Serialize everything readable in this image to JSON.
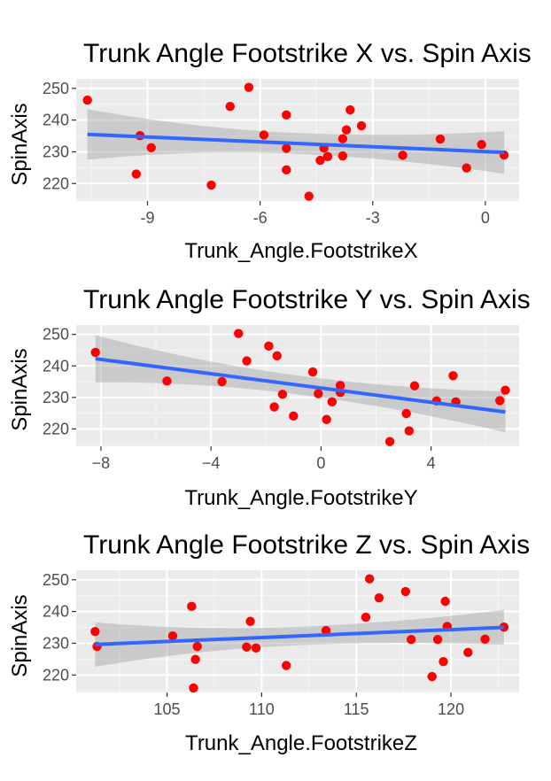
{
  "chart_data": [
    {
      "type": "scatter",
      "title": "Trunk Angle Footstrike X vs. Spin Axis",
      "xlabel": "Trunk_Angle.FootstrikeX",
      "ylabel": "SpinAxis",
      "xlim": [
        -10.9,
        0.9
      ],
      "ylim": [
        214.5,
        253
      ],
      "xticks": [
        -9,
        -6,
        -3,
        0
      ],
      "xtick_labels": [
        "-9",
        "-6",
        "-3",
        "0"
      ],
      "yticks": [
        220,
        230,
        240,
        250
      ],
      "ytick_labels": [
        "220",
        "230",
        "240",
        "250"
      ],
      "grid": true,
      "points_color": "#ff0000",
      "fit_color": "#3366ff",
      "band_color": "#999999",
      "fit": {
        "x": [
          -10.6,
          0.5
        ],
        "y": [
          235.5,
          229.8
        ]
      },
      "band_half_width": {
        "left": 8,
        "center": 3.3,
        "right": 6.7
      },
      "points": [
        [
          -10.6,
          246.3
        ],
        [
          -9.3,
          223.0
        ],
        [
          -9.2,
          235.1
        ],
        [
          -8.9,
          231.3
        ],
        [
          -7.3,
          219.5
        ],
        [
          -6.8,
          244.3
        ],
        [
          -6.3,
          250.3
        ],
        [
          -5.9,
          235.3
        ],
        [
          -5.3,
          241.6
        ],
        [
          -5.3,
          231.1
        ],
        [
          -5.3,
          224.3
        ],
        [
          -4.7,
          216.0
        ],
        [
          -4.4,
          227.3
        ],
        [
          -4.3,
          231.2
        ],
        [
          -4.2,
          228.5
        ],
        [
          -3.8,
          228.7
        ],
        [
          -3.8,
          234.1
        ],
        [
          -3.7,
          236.9
        ],
        [
          -3.6,
          243.2
        ],
        [
          -3.3,
          238.2
        ],
        [
          -2.2,
          228.9
        ],
        [
          -1.2,
          234.0
        ],
        [
          -0.5,
          224.9
        ],
        [
          -0.1,
          232.3
        ],
        [
          0.5,
          229.0
        ]
      ]
    },
    {
      "type": "scatter",
      "title": "Trunk Angle Footstrike Y vs. Spin Axis",
      "xlabel": "Trunk_Angle.FootstrikeY",
      "ylabel": "SpinAxis",
      "xlim": [
        -8.9,
        7.2
      ],
      "ylim": [
        214.5,
        253
      ],
      "xticks": [
        -8,
        -4,
        0,
        4
      ],
      "xtick_labels": [
        "−8",
        "−4",
        "0",
        "4"
      ],
      "yticks": [
        220,
        230,
        240,
        250
      ],
      "ytick_labels": [
        "220",
        "230",
        "240",
        "250"
      ],
      "grid": true,
      "points_color": "#ff0000",
      "fit_color": "#3366ff",
      "band_color": "#999999",
      "fit": {
        "x": [
          -8.2,
          6.7
        ],
        "y": [
          242.3,
          225.4
        ]
      },
      "band_half_width": {
        "left": 7.5,
        "center": 3.0,
        "right": 6.5
      },
      "points": [
        [
          -8.2,
          244.3
        ],
        [
          -5.6,
          235.2
        ],
        [
          -3.6,
          235.0
        ],
        [
          -3.0,
          250.3
        ],
        [
          -2.7,
          241.6
        ],
        [
          -1.9,
          246.3
        ],
        [
          -1.7,
          227.0
        ],
        [
          -1.6,
          243.2
        ],
        [
          -1.4,
          231.0
        ],
        [
          -1.0,
          224.1
        ],
        [
          -0.3,
          238.1
        ],
        [
          -0.1,
          231.2
        ],
        [
          0.2,
          223.0
        ],
        [
          0.4,
          228.6
        ],
        [
          0.7,
          233.8
        ],
        [
          0.7,
          231.6
        ],
        [
          2.5,
          216.0
        ],
        [
          3.1,
          224.9
        ],
        [
          3.2,
          219.4
        ],
        [
          3.4,
          233.7
        ],
        [
          4.2,
          228.9
        ],
        [
          4.8,
          236.9
        ],
        [
          4.9,
          228.6
        ],
        [
          6.5,
          229.0
        ],
        [
          6.7,
          232.3
        ]
      ]
    },
    {
      "type": "scatter",
      "title": "Trunk Angle Footstrike Z vs. Spin Axis",
      "xlabel": "Trunk_Angle.FootstrikeZ",
      "ylabel": "SpinAxis",
      "xlim": [
        100.2,
        123.6
      ],
      "ylim": [
        214.5,
        253
      ],
      "xticks": [
        105,
        110,
        115,
        120
      ],
      "xtick_labels": [
        "105",
        "110",
        "115",
        "120"
      ],
      "yticks": [
        220,
        230,
        240,
        250
      ],
      "ytick_labels": [
        "220",
        "230",
        "240",
        "250"
      ],
      "grid": true,
      "points_color": "#ff0000",
      "fit_color": "#3366ff",
      "band_color": "#999999",
      "fit": {
        "x": [
          101.2,
          122.8
        ],
        "y": [
          229.6,
          235.0
        ]
      },
      "band_half_width": {
        "left": 7,
        "center": 2.9,
        "right": 5.5
      },
      "points": [
        [
          101.2,
          233.7
        ],
        [
          101.3,
          229.0
        ],
        [
          105.3,
          232.3
        ],
        [
          106.3,
          241.6
        ],
        [
          106.4,
          215.9
        ],
        [
          106.5,
          224.9
        ],
        [
          106.6,
          229.0
        ],
        [
          109.2,
          228.8
        ],
        [
          109.4,
          236.9
        ],
        [
          109.7,
          228.5
        ],
        [
          111.3,
          223.0
        ],
        [
          113.4,
          234.0
        ],
        [
          115.5,
          238.2
        ],
        [
          115.7,
          250.3
        ],
        [
          116.2,
          244.3
        ],
        [
          117.6,
          246.3
        ],
        [
          117.9,
          231.2
        ],
        [
          119.0,
          219.5
        ],
        [
          119.3,
          231.2
        ],
        [
          119.6,
          224.2
        ],
        [
          119.7,
          243.2
        ],
        [
          119.8,
          235.3
        ],
        [
          120.9,
          227.1
        ],
        [
          121.8,
          231.3
        ],
        [
          122.8,
          235.1
        ]
      ]
    }
  ]
}
